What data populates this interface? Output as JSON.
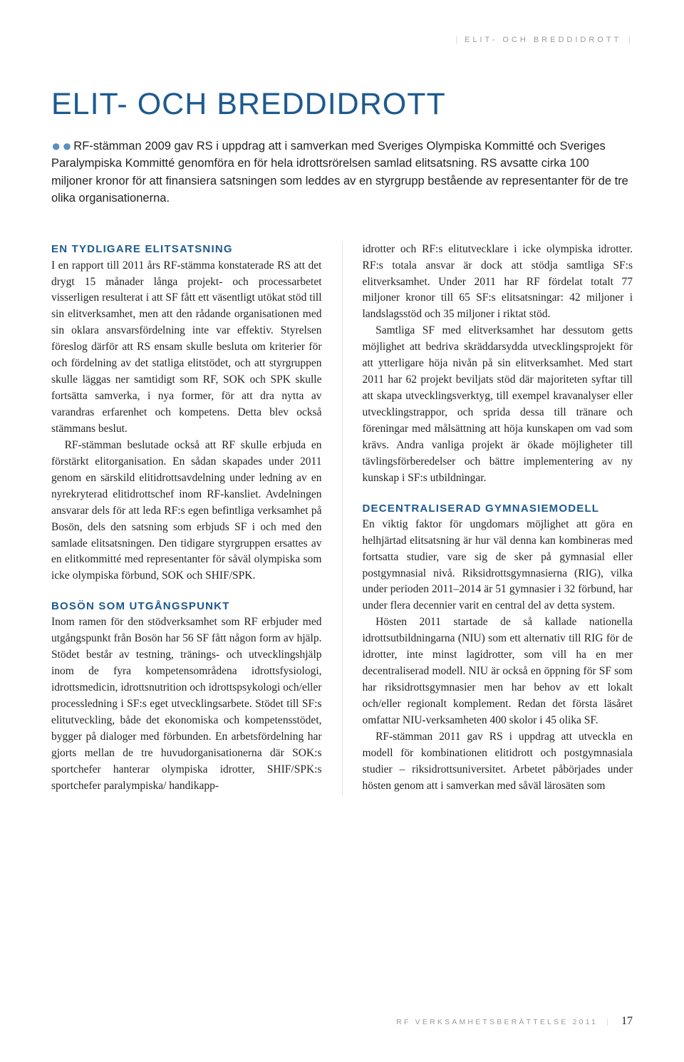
{
  "eyebrow": {
    "left_bar": "|",
    "text": "ELIT- OCH BREDDIDROTT",
    "right_bar": "|"
  },
  "title": "ELIT- OCH BREDDIDROTT",
  "intro": {
    "bullets": "● ●",
    "text": " RF-stämman 2009 gav RS i uppdrag att i samverkan med Sveriges Olympiska Kommitté och Sveriges Paralympiska Kommitté genomföra en för hela idrottsrörelsen samlad elitsatsning. RS avsatte cirka 100 miljoner kronor för att finansiera satsningen som leddes av en styrgrupp bestående av representanter för de tre olika organisationerna."
  },
  "left": {
    "h1": "EN TYDLIGARE ELITSATSNING",
    "p1a": "I en rapport till 2011 års RF-stämma konstaterade RS att det drygt 15 månader långa projekt- och processarbetet visserligen resulterat i att SF fått ett väsentligt utökat stöd till sin elitverksamhet, men att den rådande organisationen med sin oklara ansvarsfördelning inte var effektiv. Styrelsen föreslog därför att RS ensam skulle besluta om kriterier för och fördelning av det statliga elitstödet, och att styrgruppen skulle läggas ner samtidigt som RF, SOK och SPK skulle fortsätta samverka, i nya former, för att dra nytta av varandras erfarenhet och kompetens. Detta blev också stämmans beslut.",
    "p1b": "RF-stämman beslutade också att RF skulle erbjuda en förstärkt elitorganisation. En sådan skapades under 2011 genom en särskild elitidrottsavdelning under ledning av en nyrekryterad elitidrottschef inom RF-kansliet. Avdelningen ansvarar dels för att leda RF:s egen befintliga verksamhet på Bosön, dels den satsning som erbjuds SF i och med den samlade elitsatsningen. Den tidigare styrgruppen ersattes av en elitkommitté med representanter för såväl olympiska som icke olympiska förbund, SOK och SHIF/SPK.",
    "h2": "BOSÖN SOM UTGÅNGSPUNKT",
    "p2": "Inom ramen för den stödverksamhet som RF erbjuder med utgångspunkt från Bosön har 56 SF fått någon form av hjälp. Stödet består av testning, tränings- och utvecklingshjälp inom de fyra kompetensområdena idrottsfysiologi, idrottsmedicin, idrottsnutrition och idrottspsykologi och/eller processledning i SF:s eget utvecklingsarbete. Stödet till SF:s elitutveckling, både det ekonomiska och kompetensstödet, bygger på dialoger med förbunden. En arbetsfördelning har gjorts mellan de tre huvudorganisationerna där SOK:s sportchefer hanterar olympiska idrotter, SHIF/SPK:s sportchefer paralympiska/ handikapp-"
  },
  "right": {
    "p1a": "idrotter och RF:s elitutvecklare i icke olympiska idrotter. RF:s totala ansvar är dock att stödja samtliga SF:s elitverksamhet. Under 2011 har RF fördelat totalt 77 miljoner kronor till 65 SF:s elitsatsningar: 42 miljoner i landslagsstöd och 35 miljoner i riktat stöd.",
    "p1b": "Samtliga SF med elitverksamhet har dessutom getts möjlighet att bedriva skräddarsydda utvecklingsprojekt för att ytterligare höja nivån på sin elitverksamhet. Med start 2011 har 62 projekt beviljats stöd där majoriteten syftar till att skapa utvecklingsverktyg, till exempel kravanalyser eller utvecklingstrappor, och sprida dessa till tränare och föreningar med målsättning att höja kunskapen om vad som krävs. Andra vanliga projekt är ökade möjligheter till tävlingsförberedelser och bättre implementering av ny kunskap i SF:s utbildningar.",
    "h1": "DECENTRALISERAD GYMNASIEMODELL",
    "p2a": "En viktig faktor för ungdomars möjlighet att göra en helhjärtad elitsatsning är hur väl denna kan kombineras med fortsatta studier, vare sig de sker på gymnasial eller postgymnasial nivå. Riksidrottsgymnasierna (RIG), vilka under perioden 2011–2014 är 51 gymnasier i 32 förbund, har under flera decennier varit en central del av detta system.",
    "p2b": "Hösten 2011 startade de så kallade nationella idrottsutbildningarna (NIU) som ett alternativ till RIG för de idrotter, inte minst lagidrotter, som vill ha en mer decentraliserad modell. NIU är också en öppning för SF som har riksidrottsgymnasier men har behov av ett lokalt och/eller regionalt komplement. Redan det första läsåret omfattar NIU-verksamheten 400 skolor i 45 olika SF.",
    "p2c": "RF-stämman 2011 gav RS i uppdrag att utveckla en modell för kombinationen elitidrott och postgymnasiala studier – riksidrottsuniversitet. Arbetet påbörjades under hösten genom att i samverkan med såväl lärosäten som"
  },
  "footer": {
    "text": "RF VERKSAMHETSBERÄTTELSE 2011",
    "bar": "|",
    "page": "17"
  }
}
